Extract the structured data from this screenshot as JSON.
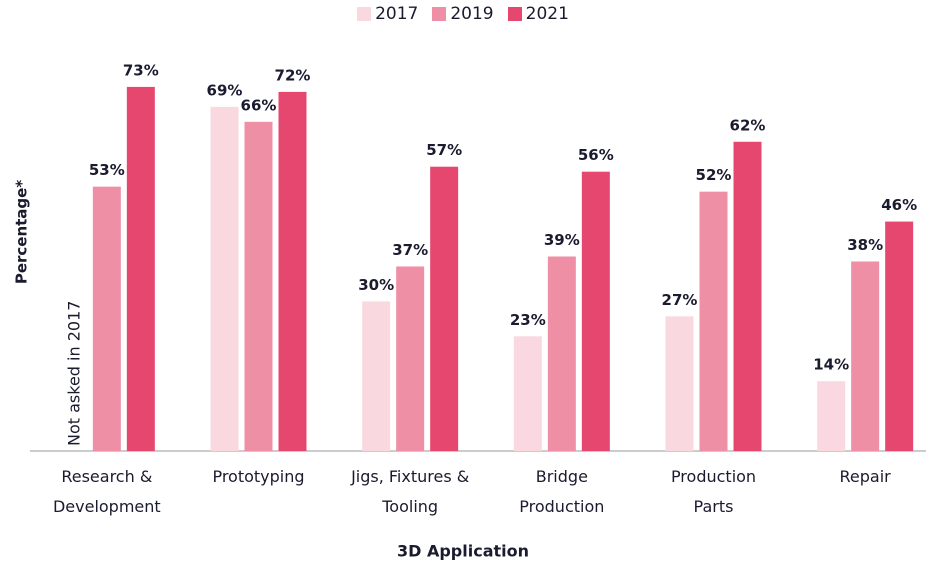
{
  "chart_data": {
    "type": "bar",
    "x_label": "3D Application",
    "y_label": "Percentage*",
    "annotation": "Not asked in 2017",
    "categories": [
      "Research &\nDevelopment",
      "Prototyping",
      "Jigs, Fixtures &\nTooling",
      "Bridge\nProduction",
      "Production\nParts",
      "Repair"
    ],
    "series": [
      {
        "name": "2017",
        "color": "#f9d9df",
        "values": [
          null,
          69,
          30,
          23,
          27,
          14
        ],
        "value_labels": [
          null,
          "69%",
          "30%",
          "23%",
          "27%",
          "14%"
        ]
      },
      {
        "name": "2019",
        "color": "#ee8fa6",
        "values": [
          53,
          66,
          37,
          39,
          52,
          38
        ],
        "value_labels": [
          "53%",
          "66%",
          "37%",
          "39%",
          "52%",
          "38%"
        ]
      },
      {
        "name": "2021",
        "color": "#e5476f",
        "values": [
          73,
          72,
          57,
          56,
          62,
          46
        ],
        "value_labels": [
          "73%",
          "72%",
          "57%",
          "56%",
          "62%",
          "46%"
        ]
      }
    ],
    "ylim": [
      0,
      80
    ],
    "legend": "top"
  }
}
